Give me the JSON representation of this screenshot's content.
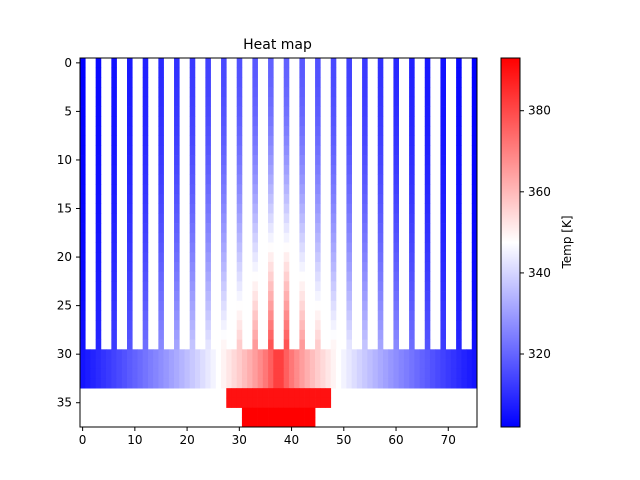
{
  "chart_data": {
    "type": "heatmap",
    "title": "Heat map",
    "xlabel": "",
    "ylabel": "",
    "xlim": [
      -0.5,
      75.5
    ],
    "ylim": [
      37.5,
      -0.5
    ],
    "y_inverted": true,
    "x_ticks": [
      0,
      10,
      20,
      30,
      40,
      50,
      60,
      70
    ],
    "y_ticks": [
      0,
      5,
      10,
      15,
      20,
      25,
      30,
      35
    ],
    "grid": {
      "columns": 76,
      "rows": 38,
      "background": "#ffffff"
    },
    "colormap": "bwr",
    "colorbar": {
      "label": "Temp [K]",
      "vmin": 302,
      "vmax": 393,
      "ticks": [
        320,
        340,
        360,
        380
      ]
    },
    "regions": {
      "fins": {
        "rows": [
          0,
          29
        ],
        "fin_width": 1,
        "fin_pitch": 3,
        "first_fin_col": 0,
        "edge_temp": 302,
        "center_temp": 320,
        "bottom_center_temp": 393
      },
      "base": {
        "rows": [
          30,
          33
        ],
        "cols": [
          0,
          75
        ],
        "edge_temp": 305,
        "center_temp": 388
      },
      "heat_spreader": {
        "rows": [
          34,
          35
        ],
        "cols": [
          28,
          47
        ],
        "temp": 390
      },
      "heat_source": {
        "rows": [
          36,
          37
        ],
        "cols": [
          31,
          44
        ],
        "temp": 393
      }
    }
  }
}
